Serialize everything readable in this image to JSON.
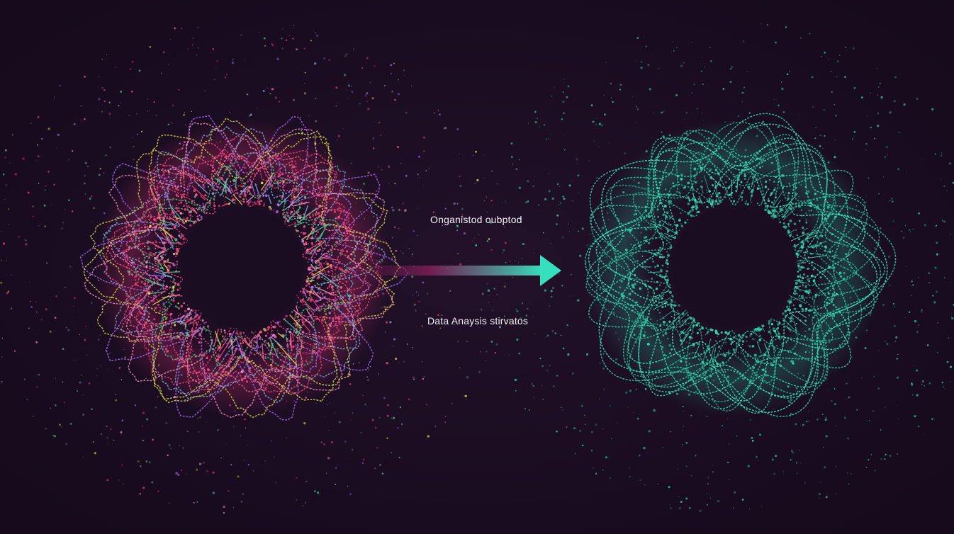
{
  "labels": {
    "top": "Onganistod oubptod",
    "bottom": "Data Anaysis stirvatos"
  },
  "colors": {
    "background": "#1a0c21",
    "text": "#f2eef6",
    "chaotic_palette": [
      "#ff3d7f",
      "#ff5c8a",
      "#7fb3e6",
      "#e8e14a",
      "#4fd18f",
      "#ff9ac0",
      "#b06cff"
    ],
    "organized_color": "#2fd9b0",
    "arrow_start": "#7a1f55",
    "arrow_end": "#36e0bf"
  },
  "icons": {
    "arrow": "arrow-right-icon"
  }
}
